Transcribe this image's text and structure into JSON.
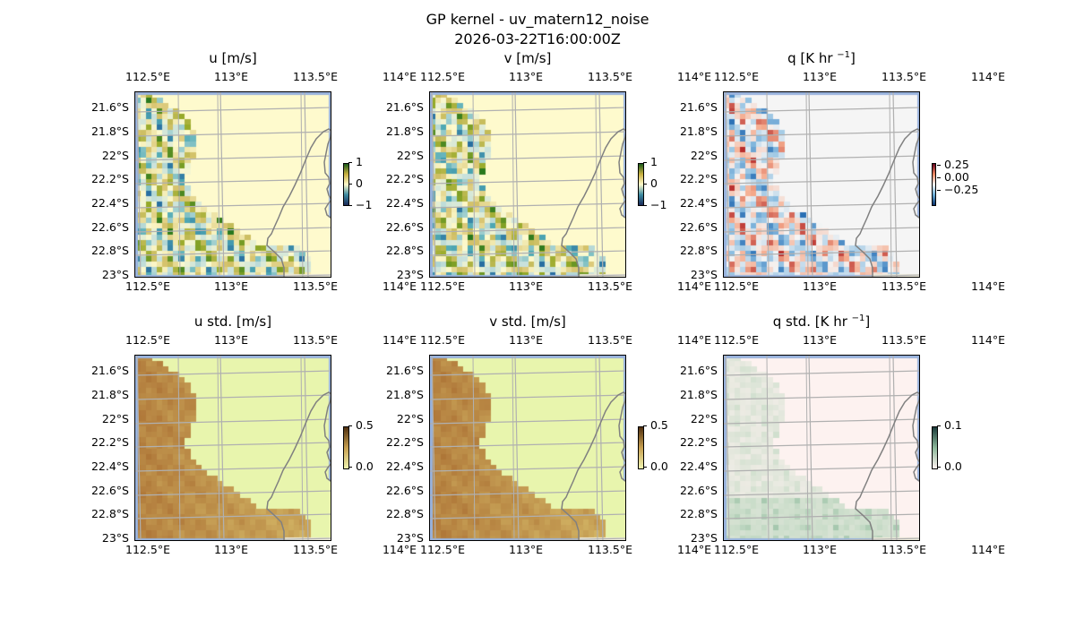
{
  "figure": {
    "title_line1": "GP kernel - uv_matern12_noise",
    "title_line2": "2026-03-22T16:00:00Z"
  },
  "chart_data": [
    {
      "type": "heatmap",
      "title": "u [m/s]",
      "title_main": "u [m/s]",
      "title_sup": "",
      "title_end": "",
      "colormap": "diverging teal-cream-green",
      "clim": [
        -1,
        1
      ],
      "colorbar_ticks": [
        "1",
        "0",
        "−1"
      ],
      "field": "u"
    },
    {
      "type": "heatmap",
      "title": "v [m/s]",
      "title_main": "v [m/s]",
      "title_sup": "",
      "title_end": "",
      "colormap": "diverging teal-cream-green",
      "clim": [
        -1,
        1
      ],
      "colorbar_ticks": [
        "1",
        "0",
        "−1"
      ],
      "field": "v"
    },
    {
      "type": "heatmap",
      "title": "q [K hr −1]",
      "title_main": "q [K hr ",
      "title_sup": "−1",
      "title_end": "]",
      "colormap": "RdBu_r",
      "clim": [
        -0.35,
        0.35
      ],
      "colorbar_ticks": [
        "0.25",
        "0.00",
        "−0.25"
      ],
      "field": "q"
    },
    {
      "type": "heatmap",
      "title": "u std. [m/s]",
      "title_main": "u std. [m/s]",
      "title_sup": "",
      "title_end": "",
      "colormap": "yellow-brown",
      "clim": [
        0,
        0.5
      ],
      "colorbar_ticks": [
        "0.5",
        "0.0"
      ],
      "field": "ustd"
    },
    {
      "type": "heatmap",
      "title": "v std. [m/s]",
      "title_main": "v std. [m/s]",
      "title_sup": "",
      "title_end": "",
      "colormap": "yellow-brown",
      "clim": [
        0,
        0.5
      ],
      "colorbar_ticks": [
        "0.5",
        "0.0"
      ],
      "field": "vstd"
    },
    {
      "type": "heatmap",
      "title": "q std. [K hr −1]",
      "title_main": "q std. [K hr ",
      "title_sup": "−1",
      "title_end": "]",
      "colormap": "pink-green",
      "clim": [
        0,
        0.1
      ],
      "colorbar_ticks": [
        "0.1",
        "0.0"
      ],
      "field": "qstd"
    }
  ],
  "axes": {
    "x_ticks": [
      "112.5°E",
      "113°E",
      "113.5°E",
      "114°E"
    ],
    "y_ticks": [
      "21.6°S",
      "21.8°S",
      "22°S",
      "22.2°S",
      "22.4°S",
      "22.6°S",
      "22.8°S",
      "23°S"
    ],
    "x_range": [
      112.5,
      114.2
    ],
    "y_range": [
      -23.0,
      -21.5
    ]
  }
}
